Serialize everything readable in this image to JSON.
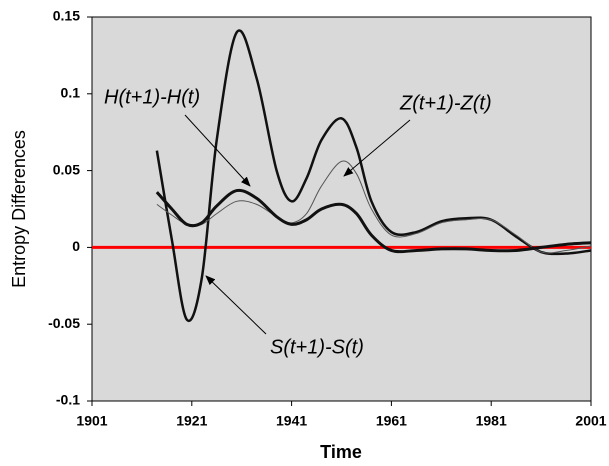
{
  "chart_data": {
    "type": "line",
    "xlabel": "Time",
    "ylabel": "Entropy Differences",
    "x": [
      1914,
      1917,
      1920,
      1923,
      1926,
      1930,
      1934,
      1938,
      1941,
      1944,
      1947,
      1951,
      1954,
      1957,
      1961,
      1966,
      1971,
      1976,
      1981,
      1986,
      1991,
      1996,
      2001
    ],
    "series": [
      {
        "name": "S(t+1)-S(t)",
        "color": "#111111",
        "values": [
          0.063,
          0.005,
          -0.047,
          -0.02,
          0.07,
          0.14,
          0.11,
          0.05,
          0.03,
          0.045,
          0.07,
          0.084,
          0.065,
          0.03,
          0.01,
          0.01,
          0.017,
          0.019,
          0.018,
          0.007,
          -0.003,
          -0.004,
          -0.002
        ]
      },
      {
        "name": "Z(t+1)-Z(t)",
        "color": "#555555",
        "values": [
          0.028,
          0.021,
          0.015,
          0.015,
          0.022,
          0.03,
          0.028,
          0.02,
          0.016,
          0.022,
          0.04,
          0.056,
          0.048,
          0.025,
          0.008,
          0.009,
          0.016,
          0.018,
          0.018,
          0.008,
          -0.003,
          -0.002,
          0.001
        ]
      },
      {
        "name": "H(t+1)-H(t)",
        "color": "#111111",
        "values": [
          0.036,
          0.025,
          0.015,
          0.016,
          0.027,
          0.037,
          0.032,
          0.02,
          0.015,
          0.018,
          0.025,
          0.028,
          0.022,
          0.008,
          -0.002,
          -0.002,
          -0.001,
          -0.001,
          -0.002,
          -0.002,
          0.0,
          0.002,
          0.003
        ]
      }
    ],
    "xlim": [
      1901,
      2001
    ],
    "xticks": [
      1901,
      1921,
      1941,
      1961,
      1981,
      2001
    ],
    "ylim": [
      -0.1,
      0.15
    ],
    "yticks": [
      -0.1,
      -0.05,
      0,
      0.05,
      0.1,
      0.15
    ],
    "hline": {
      "value": 0,
      "color": "#ff0000"
    },
    "background": "#d9d9d9"
  }
}
